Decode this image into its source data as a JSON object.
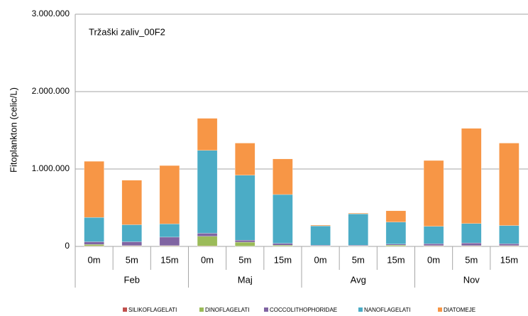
{
  "chart_data": {
    "type": "stacked_bar",
    "annotation": "Tržaški zaliv_00F2",
    "y_label": "Fitoplankton (celic/L)",
    "categories": [
      "0m",
      "5m",
      "15m",
      "0m",
      "5m",
      "15m",
      "0m",
      "5m",
      "15m",
      "0m",
      "5m",
      "15m"
    ],
    "groups": [
      "Feb",
      "Maj",
      "Avg",
      "Nov"
    ],
    "ylim": [
      0,
      3000000
    ],
    "yticks": [
      {
        "value": 0,
        "label": "0"
      },
      {
        "value": 1000000,
        "label": "1.000.000"
      },
      {
        "value": 2000000,
        "label": "2.000.000"
      },
      {
        "value": 3000000,
        "label": "3.000.000"
      }
    ],
    "grid": true,
    "legend": "bottom",
    "series": [
      {
        "name": "SILIKOFLAGELATI",
        "color": "#c0504d",
        "values": [
          5000,
          5000,
          5000,
          5000,
          3000,
          3000,
          2000,
          2000,
          2000,
          5000,
          5000,
          5000
        ]
      },
      {
        "name": "DINOFLAGELATI",
        "color": "#9bbb59",
        "values": [
          20000,
          5000,
          5000,
          125000,
          52000,
          12000,
          5000,
          5000,
          15000,
          5000,
          5000,
          5000
        ]
      },
      {
        "name": "COCCOLITHOPHORIDAE",
        "color": "#8064a2",
        "values": [
          35000,
          50000,
          110000,
          40000,
          25000,
          25000,
          8000,
          8000,
          13000,
          25000,
          35000,
          25000
        ]
      },
      {
        "name": "NANOFLAGELATI",
        "color": "#4bacc6",
        "values": [
          315000,
          220000,
          170000,
          1070000,
          840000,
          630000,
          250000,
          405000,
          285000,
          225000,
          250000,
          235000
        ]
      },
      {
        "name": "DIATOMEJE",
        "color": "#f79646",
        "values": [
          725000,
          575000,
          755000,
          415000,
          415000,
          460000,
          10000,
          10000,
          145000,
          850000,
          1230000,
          1065000
        ]
      }
    ]
  }
}
